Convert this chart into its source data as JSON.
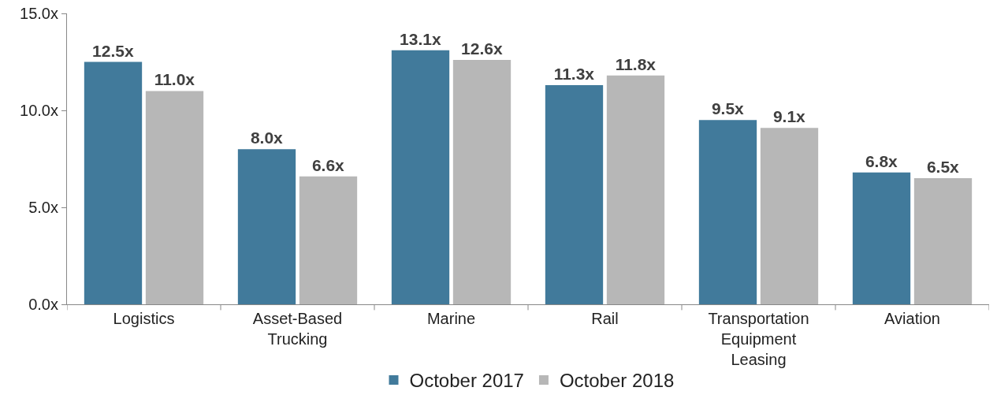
{
  "chart_data": {
    "type": "bar",
    "categories": [
      "Logistics",
      "Asset-Based\nTrucking",
      "Marine",
      "Rail",
      "Transportation\nEquipment\nLeasing",
      "Aviation"
    ],
    "series": [
      {
        "name": "October 2017",
        "color": "#417a9b",
        "values": [
          12.5,
          8.0,
          13.1,
          11.3,
          9.5,
          6.8
        ],
        "value_labels": [
          "12.5x",
          "8.0x",
          "13.1x",
          "11.3x",
          "9.5x",
          "6.8x"
        ]
      },
      {
        "name": "October 2018",
        "color": "#b7b7b7",
        "values": [
          11.0,
          6.6,
          12.6,
          11.8,
          9.1,
          6.5
        ],
        "value_labels": [
          "11.0x",
          "6.6x",
          "12.6x",
          "11.8x",
          "9.1x",
          "6.5x"
        ]
      }
    ],
    "ylim": [
      0,
      15
    ],
    "yticks": [
      {
        "value": 0,
        "label": "0.0x"
      },
      {
        "value": 5,
        "label": "5.0x"
      },
      {
        "value": 10,
        "label": "10.0x"
      },
      {
        "value": 15,
        "label": "15.0x"
      }
    ],
    "grid": false,
    "legend": "bottom"
  }
}
